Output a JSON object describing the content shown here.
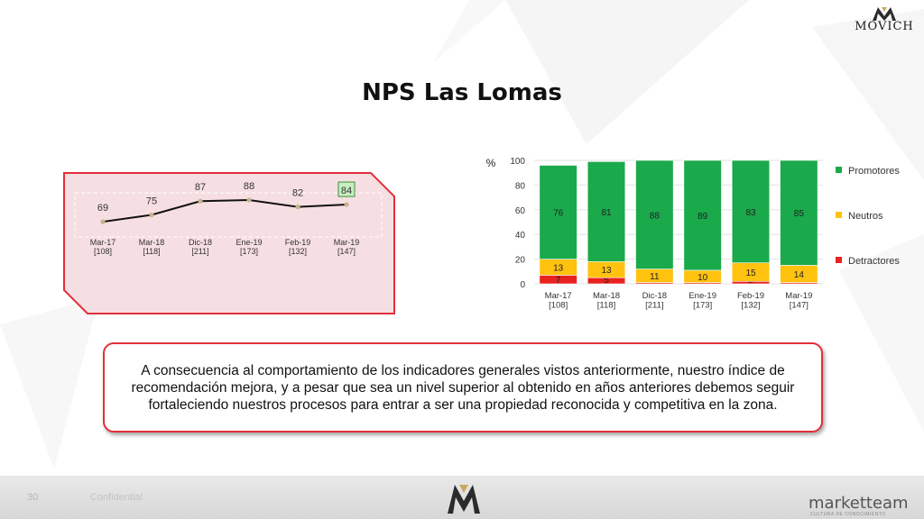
{
  "header": {
    "brand": "MOVICH",
    "title": "NPS Las Lomas"
  },
  "chart_data": [
    {
      "type": "line",
      "categories": [
        "Mar-17\n[108]",
        "Mar-18\n[118]",
        "Dic-18\n[211]",
        "Ene-19\n[173]",
        "Feb-19\n[132]",
        "Mar-19\n[147]"
      ],
      "series": [
        {
          "values": [
            69,
            75,
            87,
            88,
            82,
            84
          ]
        }
      ],
      "highlight_last": true,
      "ylim": [
        40,
        110
      ],
      "colors": {
        "line": "#111111",
        "marker": "#c8b28a",
        "panel": "#f6dfe2",
        "border": "#e0313a",
        "highlight": "#c7efc0"
      }
    },
    {
      "type": "bar",
      "stacked": true,
      "ylabel": "%",
      "ylim": [
        0,
        100
      ],
      "yticks": [
        0,
        20,
        40,
        60,
        80,
        100
      ],
      "categories": [
        "Mar-17\n[108]",
        "Mar-18\n[118]",
        "Dic-18\n[211]",
        "Ene-19\n[173]",
        "Feb-19\n[132]",
        "Mar-19\n[147]"
      ],
      "series": [
        {
          "name": "Detractores",
          "color": "#e8231f",
          "values": [
            7,
            5,
            1,
            1,
            2,
            1
          ]
        },
        {
          "name": "Neutros",
          "color": "#ffc20e",
          "values": [
            13,
            13,
            11,
            10,
            15,
            14
          ]
        },
        {
          "name": "Promotores",
          "color": "#1aa94b",
          "values": [
            76,
            81,
            88,
            89,
            83,
            85
          ]
        }
      ],
      "legend_position": "right"
    }
  ],
  "note": {
    "text": "A consecuencia al comportamiento de los indicadores generales vistos anteriormente, nuestro índice de recomendación mejora, y a pesar que sea un nivel superior al obtenido en años anteriores debemos seguir fortaleciendo nuestros procesos para entrar a ser una propiedad reconocida y competitiva en la zona."
  },
  "footer": {
    "page_number": "30",
    "label": "Confidential",
    "partner_brand": "marketteam",
    "partner_tagline": "CULTURA DE CONOCIMIENTO"
  }
}
